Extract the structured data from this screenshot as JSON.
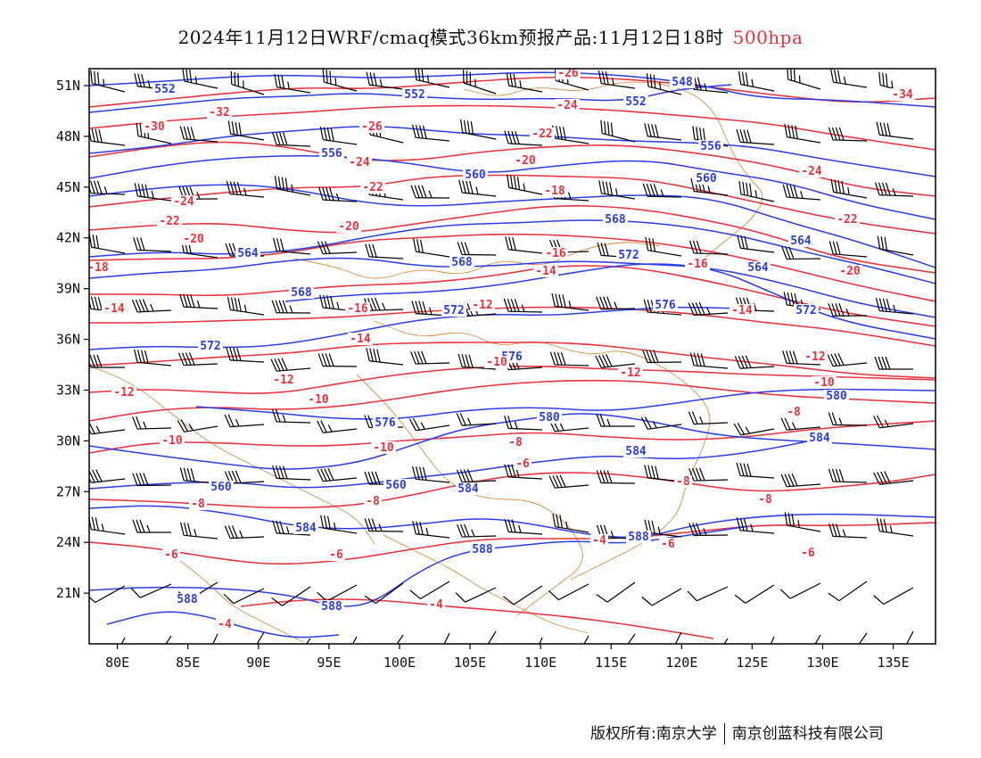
{
  "title": {
    "main": "2024年11月12日WRF/cmaq模式36km预报产品:11月12日18时",
    "level": "500hpa",
    "level_color": "#e8323c"
  },
  "footer": {
    "left": "版权所有:南京大学",
    "right": "南京创蓝科技有限公司"
  },
  "colors": {
    "height": "#2a3ee8",
    "temperature": "#e8323c",
    "border": "#e08c3c",
    "wind": "#000000"
  },
  "map": {
    "lon_range": [
      78,
      138
    ],
    "lat_range": [
      18,
      52
    ],
    "lon_ticks": [
      "80E",
      "85E",
      "90E",
      "95E",
      "100E",
      "105E",
      "110E",
      "115E",
      "120E",
      "125E",
      "130E",
      "135E"
    ],
    "lat_ticks": [
      "21N",
      "24N",
      "27N",
      "30N",
      "33N",
      "36N",
      "39N",
      "42N",
      "45N",
      "48N",
      "51N"
    ]
  },
  "height_contours": [
    "548",
    "552",
    "556",
    "560",
    "564",
    "568",
    "572",
    "576",
    "580",
    "584",
    "588"
  ],
  "temperature_contours": [
    "-34",
    "-32",
    "-30",
    "-26",
    "-24",
    "-22",
    "-20",
    "-18",
    "-16",
    "-14",
    "-12",
    "-10",
    "-8",
    "-6",
    "-4"
  ]
}
